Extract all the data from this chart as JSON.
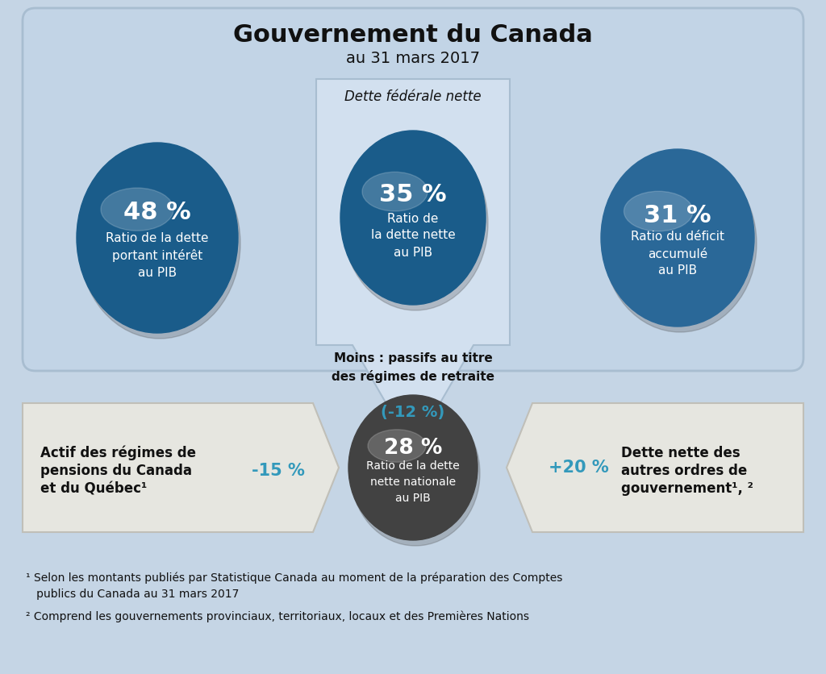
{
  "title_line1": "Gouvernement du Canada",
  "title_line2": "au 31 mars 2017",
  "bg_page": "#c5d5e5",
  "bg_main_box_fc": "#c2d4e6",
  "bg_main_box_ec": "#a8bdd0",
  "mid_box_fc": "#d2e0ef",
  "mid_box_ec": "#a8bdd0",
  "circle_blue1": "#1a5c8a",
  "circle_blue2": "#1a5c8a",
  "circle_blue3": "#2a6898",
  "circle_gray": "#424242",
  "teal_color": "#3399bb",
  "bottom_box_fc": "#e6e6e0",
  "bottom_box_ec": "#c0bfb8",
  "title_line1_fs": 22,
  "title_line2_fs": 14,
  "circle1_pct": "48 %",
  "circle1_label": "Ratio de la dette\nportant intérêt\nau PIB",
  "circle2_pct": "35 %",
  "circle2_label": "Ratio de\nla dette nette\nau PIB",
  "circle3_pct": "31 %",
  "circle3_label": "Ratio du déficit\naccumulé\nau PIB",
  "circle4_pct": "28 %",
  "circle4_label": "Ratio de la dette\nnette nationale\nau PIB",
  "middle_box_title": "Dette fédérale nette",
  "arrow_label1": "Moins : passifs au titre\ndes régimes de retraite",
  "arrow_value": "(-12 %)",
  "left_box_text1": "Actif des régimes de",
  "left_box_text2": "pensions du Canada",
  "left_box_text3": "et du Québec¹",
  "left_box_value": "-15 %",
  "right_box_value": "+20 %",
  "right_box_text1": "Dette nette des",
  "right_box_text2": "autres ordres de",
  "right_box_text3": "gouvernement¹, ²",
  "footnote1a": "¹ Selon les montants publiés par Statistique Canada au moment de la préparation des Comptes",
  "footnote1b": "   publics du Canada au 31 mars 2017",
  "footnote2": "² Comprend les gouvernements provinciaux, territoriaux, locaux et des Premières Nations"
}
